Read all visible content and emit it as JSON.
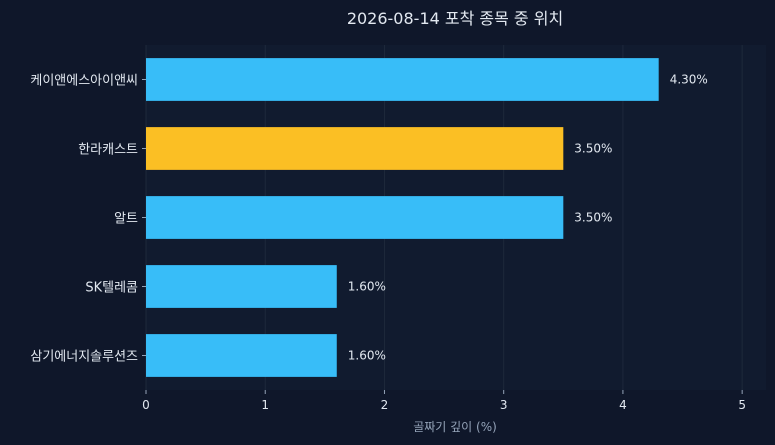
{
  "chart_data": {
    "type": "bar",
    "orientation": "horizontal",
    "title": "2026-08-14 포착 종목 중 위치",
    "xlabel": "골짜기 깊이 (%)",
    "ylabel": "",
    "categories": [
      "케이앤에스아이앤씨",
      "한라캐스트",
      "알트",
      "SK텔레콤",
      "삼기에너지솔루션즈"
    ],
    "values": [
      4.3,
      3.5,
      3.5,
      1.6,
      1.6
    ],
    "value_labels": [
      "4.30%",
      "3.50%",
      "3.50%",
      "1.60%",
      "1.60%"
    ],
    "bar_colors": [
      "#38bdf8",
      "#fbbf24",
      "#38bdf8",
      "#38bdf8",
      "#38bdf8"
    ],
    "xlim": [
      0,
      5.2
    ],
    "xticks": [
      0,
      1,
      2,
      3,
      4,
      5
    ],
    "grid": true,
    "colors": {
      "background": "#0f172a",
      "plot_background": "#111b2f",
      "grid": "#1e293b",
      "text": "#e2e8f0",
      "muted_text": "#94a3b8"
    }
  }
}
